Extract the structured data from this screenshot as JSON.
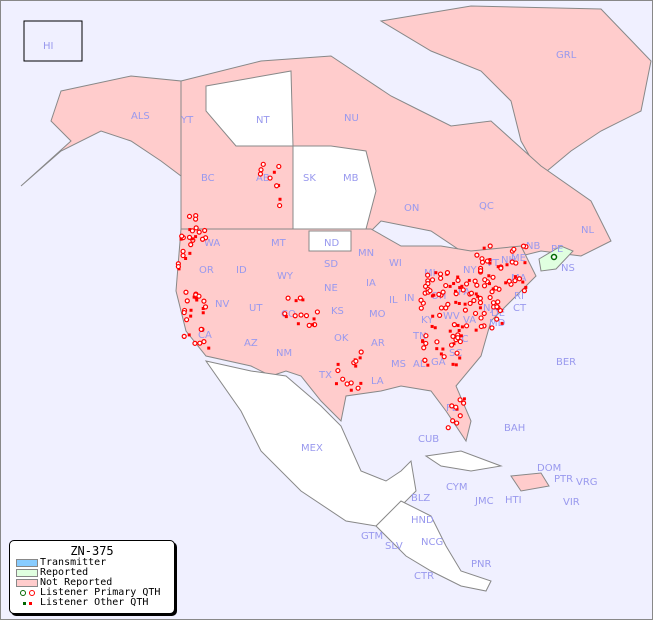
{
  "map": {
    "colors": {
      "ocean": "#f0f0ff",
      "transmitter": "#88ccff",
      "reported": "#e0ffe0",
      "not_reported": "#ffcccc",
      "unlisted": "#ffffff",
      "marker": "#ff0000",
      "reported_marker": "#006600",
      "label": "#9999ee"
    },
    "region_labels": [
      "HI",
      "ALS",
      "YT",
      "NT",
      "NU",
      "GRL",
      "BC",
      "AB",
      "SK",
      "MB",
      "ON",
      "QC",
      "NL",
      "NB",
      "PE",
      "NS",
      "WA",
      "OR",
      "ID",
      "MT",
      "ND",
      "WY",
      "SD",
      "MN",
      "WI",
      "MI",
      "NY",
      "VT",
      "NH",
      "ME",
      "MA",
      "RI",
      "CT",
      "NJ",
      "DE",
      "MD",
      "PA",
      "OH",
      "IN",
      "IL",
      "IA",
      "NE",
      "KS",
      "MO",
      "KY",
      "WV",
      "VA",
      "NC",
      "SC",
      "TN",
      "AR",
      "OK",
      "TX",
      "LA",
      "MS",
      "AL",
      "GA",
      "FL",
      "NM",
      "AZ",
      "CO",
      "UT",
      "NV",
      "CA",
      "MEX",
      "CUB",
      "BAH",
      "BER",
      "DOM",
      "PTR",
      "VRG",
      "VIR",
      "HTI",
      "JMC",
      "CYM",
      "BLZ",
      "HND",
      "GTM",
      "SLV",
      "NCG",
      "CTR",
      "PNR"
    ]
  },
  "legend": {
    "title": "ZN-375",
    "items": [
      {
        "label": "Transmitter",
        "color": "#88ccff"
      },
      {
        "label": "Reported",
        "color": "#e0ffe0"
      },
      {
        "label": "Not Reported",
        "color": "#ffcccc"
      },
      {
        "label": "Listener Primary QTH",
        "icon": "circle-marker"
      },
      {
        "label": "Listener Other QTH",
        "icon": "square-marker"
      }
    ]
  }
}
